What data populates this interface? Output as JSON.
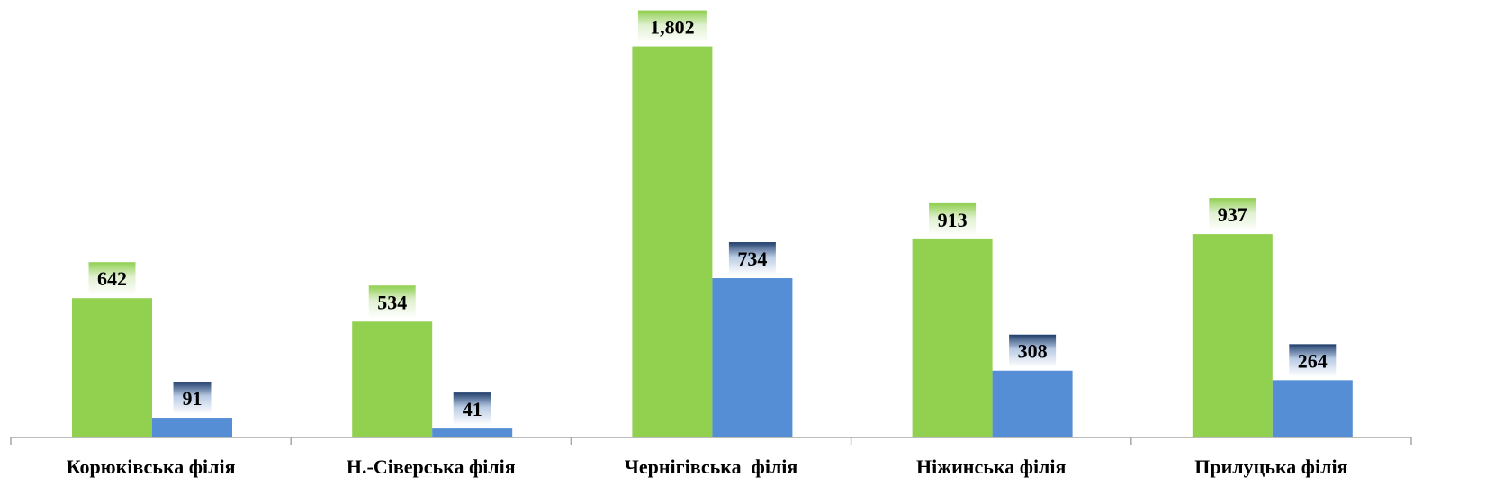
{
  "chart_data": {
    "type": "bar",
    "categories": [
      "Корюківська філія",
      "Н.-Сіверська філія",
      "Чернігівська  філія",
      "Ніжинська філія",
      "Прилуцька філія"
    ],
    "series": [
      {
        "values": [
          642,
          534,
          1802,
          913,
          937
        ],
        "value_labels": [
          "642",
          "534",
          "1,802",
          "913",
          "937"
        ]
      },
      {
        "values": [
          91,
          41,
          734,
          308,
          264
        ],
        "value_labels": [
          "91",
          "41",
          "734",
          "308",
          "264"
        ]
      }
    ],
    "ylim": [
      0,
      1850
    ],
    "grid": false,
    "legend": "none",
    "title": "",
    "xlabel": "",
    "ylabel": ""
  },
  "colors": {
    "series_0": "#92d050",
    "series_1": "#558ed5",
    "axis": "#a6a6a6"
  }
}
